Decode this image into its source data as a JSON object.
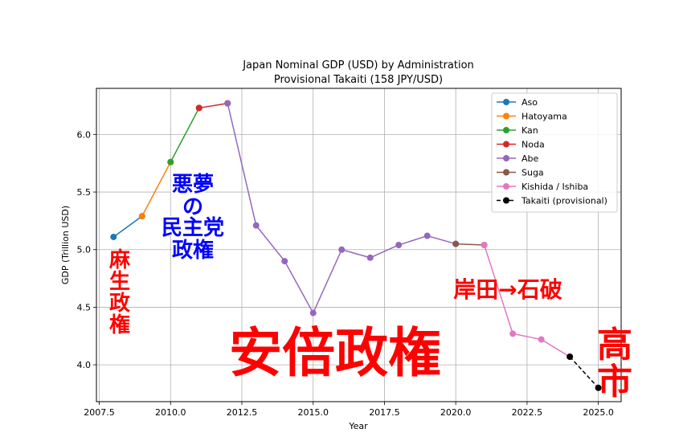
{
  "chart_data": {
    "type": "line",
    "title": "Japan Nominal GDP (USD) by Administration",
    "subtitle": "Provisional Takaiti (158 JPY/USD)",
    "xlabel": "Year",
    "ylabel": "GDP (Trillion USD)",
    "xlim": [
      2007.4,
      2025.8
    ],
    "ylim": [
      3.68,
      6.4
    ],
    "x_ticks": [
      2007.5,
      2010.0,
      2012.5,
      2015.0,
      2017.5,
      2020.0,
      2022.5,
      2025.0
    ],
    "x_tick_labels": [
      "2007.5",
      "2010.0",
      "2012.5",
      "2015.0",
      "2017.5",
      "2020.0",
      "2022.5",
      "2025.0"
    ],
    "y_ticks": [
      4.0,
      4.5,
      5.0,
      5.5,
      6.0
    ],
    "y_tick_labels": [
      "4.0",
      "4.5",
      "5.0",
      "5.5",
      "6.0"
    ],
    "grid": true,
    "legend_position": "top-right",
    "series": [
      {
        "name": "Aso",
        "color": "#1f77b4",
        "style": "solid",
        "x": [
          2008,
          2009
        ],
        "y": [
          5.11,
          5.29
        ]
      },
      {
        "name": "Hatoyama",
        "color": "#ff7f0e",
        "style": "solid",
        "x": [
          2009,
          2010
        ],
        "y": [
          5.29,
          5.76
        ]
      },
      {
        "name": "Kan",
        "color": "#2ca02c",
        "style": "solid",
        "x": [
          2010,
          2011
        ],
        "y": [
          5.76,
          6.23
        ]
      },
      {
        "name": "Noda",
        "color": "#d62728",
        "style": "solid",
        "x": [
          2011,
          2012
        ],
        "y": [
          6.23,
          6.27
        ]
      },
      {
        "name": "Abe",
        "color": "#9467bd",
        "style": "solid",
        "x": [
          2012,
          2013,
          2014,
          2015,
          2016,
          2017,
          2018,
          2019,
          2020
        ],
        "y": [
          6.27,
          5.21,
          4.9,
          4.45,
          5.0,
          4.93,
          5.04,
          5.12,
          5.05
        ]
      },
      {
        "name": "Suga",
        "color": "#8c564b",
        "style": "solid",
        "x": [
          2020,
          2021
        ],
        "y": [
          5.05,
          5.04
        ]
      },
      {
        "name": "Kishida / Ishiba",
        "color": "#e377c2",
        "style": "solid",
        "x": [
          2021,
          2022,
          2023,
          2024
        ],
        "y": [
          5.04,
          4.27,
          4.22,
          4.07
        ]
      },
      {
        "name": "Takaiti (provisional)",
        "color": "#000000",
        "style": "dashed",
        "x": [
          2024,
          2025
        ],
        "y": [
          4.07,
          3.8
        ]
      }
    ],
    "annotations": [
      {
        "id": "aso",
        "text": "麻生政権",
        "color": "#ff0000",
        "vertical": true
      },
      {
        "id": "minshu",
        "lines": [
          "悪夢",
          "の",
          "民主党",
          "政権"
        ],
        "color": "#0000ff"
      },
      {
        "id": "abe",
        "text": "安倍政権",
        "color": "#ff0000"
      },
      {
        "id": "kishida",
        "text": "岸田→石破",
        "color": "#ff0000"
      },
      {
        "id": "takaichi",
        "text": "高市",
        "color": "#ff0000",
        "vertical": true
      }
    ]
  }
}
